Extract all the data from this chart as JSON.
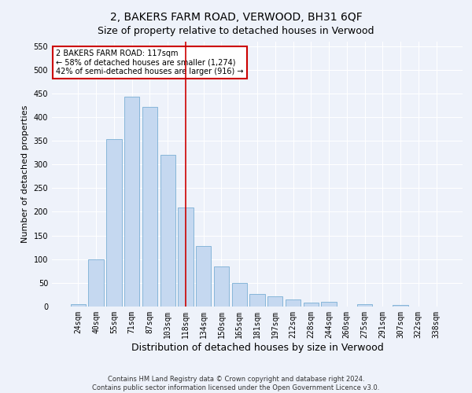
{
  "title": "2, BAKERS FARM ROAD, VERWOOD, BH31 6QF",
  "subtitle": "Size of property relative to detached houses in Verwood",
  "xlabel": "Distribution of detached houses by size in Verwood",
  "ylabel": "Number of detached properties",
  "categories": [
    "24sqm",
    "40sqm",
    "55sqm",
    "71sqm",
    "87sqm",
    "103sqm",
    "118sqm",
    "134sqm",
    "150sqm",
    "165sqm",
    "181sqm",
    "197sqm",
    "212sqm",
    "228sqm",
    "244sqm",
    "260sqm",
    "275sqm",
    "291sqm",
    "307sqm",
    "322sqm",
    "338sqm"
  ],
  "values": [
    5,
    100,
    353,
    443,
    421,
    320,
    209,
    127,
    85,
    49,
    27,
    22,
    15,
    8,
    10,
    0,
    5,
    0,
    3,
    0,
    0
  ],
  "bar_color": "#c5d8f0",
  "bar_edge_color": "#7aafd4",
  "background_color": "#eef2fa",
  "grid_color": "#ffffff",
  "vline_x": 6,
  "vline_color": "#cc0000",
  "annotation_text": "2 BAKERS FARM ROAD: 117sqm\n← 58% of detached houses are smaller (1,274)\n42% of semi-detached houses are larger (916) →",
  "annotation_box_color": "#cc0000",
  "ylim": [
    0,
    560
  ],
  "yticks": [
    0,
    50,
    100,
    150,
    200,
    250,
    300,
    350,
    400,
    450,
    500,
    550
  ],
  "footnote": "Contains HM Land Registry data © Crown copyright and database right 2024.\nContains public sector information licensed under the Open Government Licence v3.0.",
  "title_fontsize": 10,
  "tick_fontsize": 7,
  "ylabel_fontsize": 8,
  "xlabel_fontsize": 9,
  "footnote_fontsize": 6
}
